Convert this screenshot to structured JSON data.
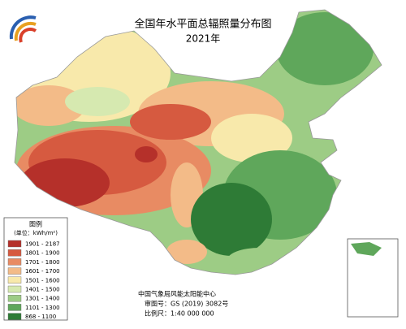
{
  "header": {
    "title": "全国年水平面总辐照量分布图",
    "subtitle": "2021年"
  },
  "legend": {
    "title": "图例",
    "unit": "(单位：kWh/m²)",
    "items": [
      {
        "label": "1901 - 2187",
        "color": "#b5302a"
      },
      {
        "label": "1801 - 1900",
        "color": "#d65a40"
      },
      {
        "label": "1701 - 1800",
        "color": "#e88b63"
      },
      {
        "label": "1601 - 1700",
        "color": "#f3bb88"
      },
      {
        "label": "1501 - 1600",
        "color": "#f8e9ab"
      },
      {
        "label": "1401 - 1500",
        "color": "#d6e9b0"
      },
      {
        "label": "1301 - 1400",
        "color": "#9dcc85"
      },
      {
        "label": "1101 - 1300",
        "color": "#5fa75b"
      },
      {
        "label": "868 - 1100",
        "color": "#2e7b36"
      }
    ]
  },
  "footer": {
    "org": "中国气象局风能太阳能中心",
    "approval": "审图号：GS (2019) 3082号",
    "scale": "比例尺：1:40 000 000"
  }
}
